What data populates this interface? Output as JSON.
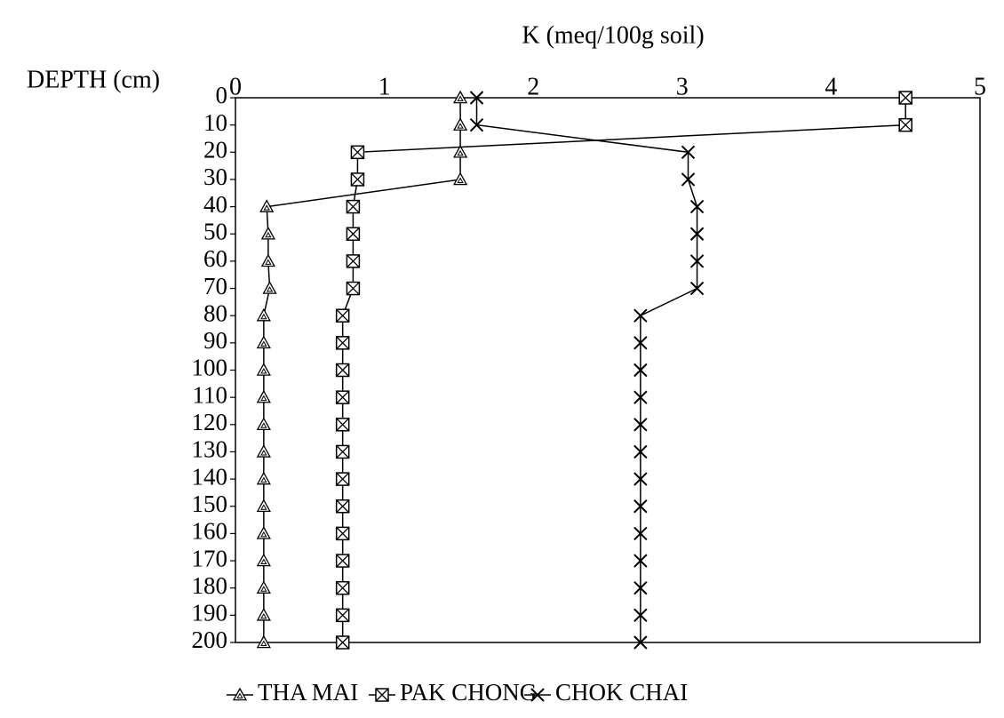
{
  "chart_data": {
    "type": "line",
    "title": "K  (meq/100g soil)",
    "y_label": "DEPTH (cm)",
    "depth": [
      0,
      10,
      20,
      30,
      40,
      50,
      60,
      70,
      80,
      90,
      100,
      110,
      120,
      130,
      140,
      150,
      160,
      170,
      180,
      190,
      200
    ],
    "xlim": [
      0,
      5
    ],
    "xticks": [
      0,
      1,
      2,
      3,
      4,
      5
    ],
    "ylim": [
      0,
      200
    ],
    "yticks": [
      0,
      10,
      20,
      30,
      40,
      50,
      60,
      70,
      80,
      90,
      100,
      110,
      120,
      130,
      140,
      150,
      160,
      170,
      180,
      190,
      200
    ],
    "inverted_y": true,
    "series": [
      {
        "name": "THA MAI",
        "color": "#000000",
        "values": [
          1.51,
          1.51,
          1.51,
          1.51,
          0.21,
          0.22,
          0.22,
          0.23,
          0.19,
          0.19,
          0.19,
          0.19,
          0.19,
          0.19,
          0.19,
          0.19,
          0.19,
          0.19,
          0.19,
          0.19,
          0.19
        ]
      },
      {
        "name": "PAK CHONG",
        "color": "#000000",
        "values": [
          4.5,
          4.5,
          0.82,
          0.82,
          0.79,
          0.79,
          0.79,
          0.79,
          0.72,
          0.72,
          0.72,
          0.72,
          0.72,
          0.72,
          0.72,
          0.72,
          0.72,
          0.72,
          0.72,
          0.72,
          0.72
        ]
      },
      {
        "name": "CHOK CHAI",
        "color": "#000000",
        "values": [
          1.62,
          1.62,
          3.04,
          3.04,
          3.1,
          3.1,
          3.1,
          3.1,
          2.72,
          2.72,
          2.72,
          2.72,
          2.72,
          2.72,
          2.72,
          2.72,
          2.72,
          2.72,
          2.72,
          2.72,
          2.72
        ]
      }
    ]
  }
}
